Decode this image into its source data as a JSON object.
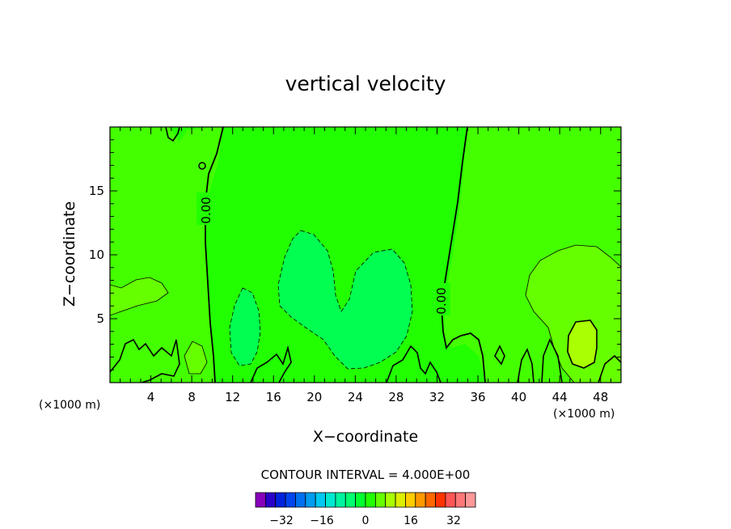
{
  "chart_data": {
    "type": "contour",
    "title": "vertical velocity",
    "xlabel": "X−coordinate",
    "ylabel": "Z−coordinate",
    "x_unit_left": "(×1000 m)",
    "x_unit_right": "(×1000 m)",
    "xlim": [
      0,
      50
    ],
    "ylim": [
      0,
      20
    ],
    "x_ticks": [
      4,
      8,
      12,
      16,
      20,
      24,
      28,
      32,
      36,
      40,
      44,
      48
    ],
    "y_ticks": [
      5,
      10,
      15
    ],
    "contour_interval_text": "CONTOUR INTERVAL =  4.000E+00",
    "contour_label": "0.00",
    "background_level_color": "#22ff00",
    "colorbar": {
      "colors": [
        "#8800bb",
        "#2a00c8",
        "#0022dd",
        "#0044ee",
        "#0070f0",
        "#009cf0",
        "#00c8f0",
        "#00e8d0",
        "#00f4a0",
        "#00ff70",
        "#00ff30",
        "#22ff00",
        "#66ff00",
        "#aaff00",
        "#ddee00",
        "#ffcc00",
        "#ff9900",
        "#ff6600",
        "#ff3300",
        "#ff5555",
        "#ff7777",
        "#ff9999"
      ],
      "tick_labels": [
        "−32",
        "−16",
        "0",
        "16",
        "32"
      ]
    },
    "regions": [
      {
        "name": "negative-lobe-left",
        "level": "slightly-negative",
        "color": "#00ff50",
        "center": [
          14.2,
          4.3
        ]
      },
      {
        "name": "negative-lobe-center",
        "level": "slightly-negative",
        "color": "#00ff50",
        "center": [
          22.5,
          6.8
        ]
      },
      {
        "name": "positive-region-right",
        "level": "positive",
        "color": "#66ff00",
        "center": [
          45,
          7.5
        ]
      },
      {
        "name": "positive-core-right",
        "level": "strong-positive",
        "color": "#aaff00",
        "center": [
          45.6,
          3.1
        ]
      },
      {
        "name": "positive-region-left",
        "level": "positive",
        "color": "#66ff00",
        "center": [
          2.5,
          6.5
        ]
      }
    ]
  }
}
